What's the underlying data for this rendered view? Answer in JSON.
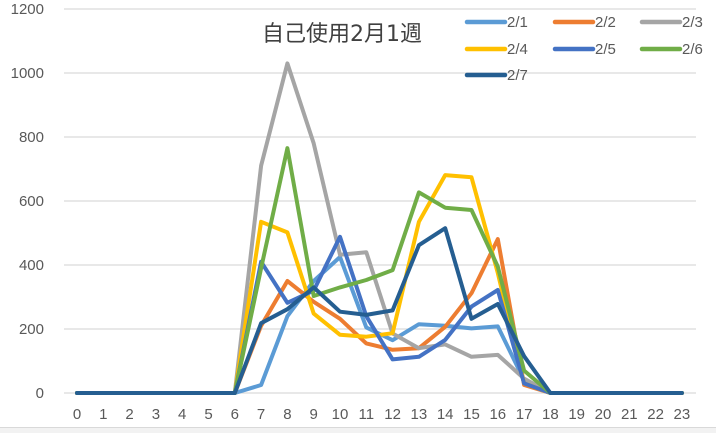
{
  "chart_data": {
    "type": "line",
    "title": "自己使用2月1週",
    "xlabel": "",
    "ylabel": "",
    "ylim": [
      0,
      1200
    ],
    "yticks": [
      0,
      200,
      400,
      600,
      800,
      1000,
      1200
    ],
    "grid": true,
    "legend_position": "top-right",
    "x": [
      0,
      1,
      2,
      3,
      4,
      5,
      6,
      7,
      8,
      9,
      10,
      11,
      12,
      13,
      14,
      15,
      16,
      17,
      18,
      19,
      20,
      21,
      22,
      23
    ],
    "series": [
      {
        "name": "2/1",
        "color": "#5B9BD5",
        "values": [
          0,
          0,
          0,
          0,
          0,
          0,
          0,
          25,
          240,
          350,
          425,
          205,
          165,
          215,
          210,
          202,
          208,
          40,
          0,
          0,
          0,
          0,
          0,
          0
        ]
      },
      {
        "name": "2/2",
        "color": "#ED7D31",
        "values": [
          0,
          0,
          0,
          0,
          0,
          0,
          0,
          210,
          350,
          285,
          232,
          155,
          135,
          140,
          207,
          312,
          481,
          25,
          0,
          0,
          0,
          0,
          0,
          0
        ]
      },
      {
        "name": "2/3",
        "color": "#A5A5A5",
        "values": [
          0,
          0,
          0,
          0,
          0,
          0,
          0,
          710,
          1030,
          780,
          432,
          440,
          186,
          140,
          152,
          113,
          119,
          45,
          0,
          0,
          0,
          0,
          0,
          0
        ]
      },
      {
        "name": "2/4",
        "color": "#FFC000",
        "values": [
          0,
          0,
          0,
          0,
          0,
          0,
          0,
          535,
          502,
          248,
          182,
          176,
          187,
          535,
          681,
          674,
          375,
          30,
          0,
          0,
          0,
          0,
          0,
          0
        ]
      },
      {
        "name": "2/5",
        "color": "#4472C4",
        "values": [
          0,
          0,
          0,
          0,
          0,
          0,
          0,
          410,
          282,
          320,
          488,
          240,
          105,
          113,
          166,
          270,
          322,
          30,
          0,
          0,
          0,
          0,
          0,
          0
        ]
      },
      {
        "name": "2/6",
        "color": "#70AD47",
        "values": [
          0,
          0,
          0,
          0,
          0,
          0,
          0,
          390,
          765,
          303,
          330,
          353,
          384,
          627,
          579,
          572,
          395,
          70,
          0,
          0,
          0,
          0,
          0,
          0
        ]
      },
      {
        "name": "2/7",
        "color": "#255E91",
        "values": [
          0,
          0,
          0,
          0,
          0,
          0,
          0,
          218,
          262,
          330,
          254,
          244,
          258,
          462,
          515,
          232,
          278,
          115,
          0,
          0,
          0,
          0,
          0,
          0
        ]
      }
    ]
  },
  "ui": {
    "title": "自己使用2月1週",
    "yticks": [
      "0",
      "200",
      "400",
      "600",
      "800",
      "1000",
      "1200"
    ],
    "xticks": [
      "0",
      "1",
      "2",
      "3",
      "4",
      "5",
      "6",
      "7",
      "8",
      "9",
      "10",
      "11",
      "12",
      "13",
      "14",
      "15",
      "16",
      "17",
      "18",
      "19",
      "20",
      "21",
      "22",
      "23"
    ],
    "legend": [
      {
        "label": "2/1",
        "color": "#5B9BD5"
      },
      {
        "label": "2/2",
        "color": "#ED7D31"
      },
      {
        "label": "2/3",
        "color": "#A5A5A5"
      },
      {
        "label": "2/4",
        "color": "#FFC000"
      },
      {
        "label": "2/5",
        "color": "#4472C4"
      },
      {
        "label": "2/6",
        "color": "#70AD47"
      },
      {
        "label": "2/7",
        "color": "#255E91"
      }
    ]
  }
}
